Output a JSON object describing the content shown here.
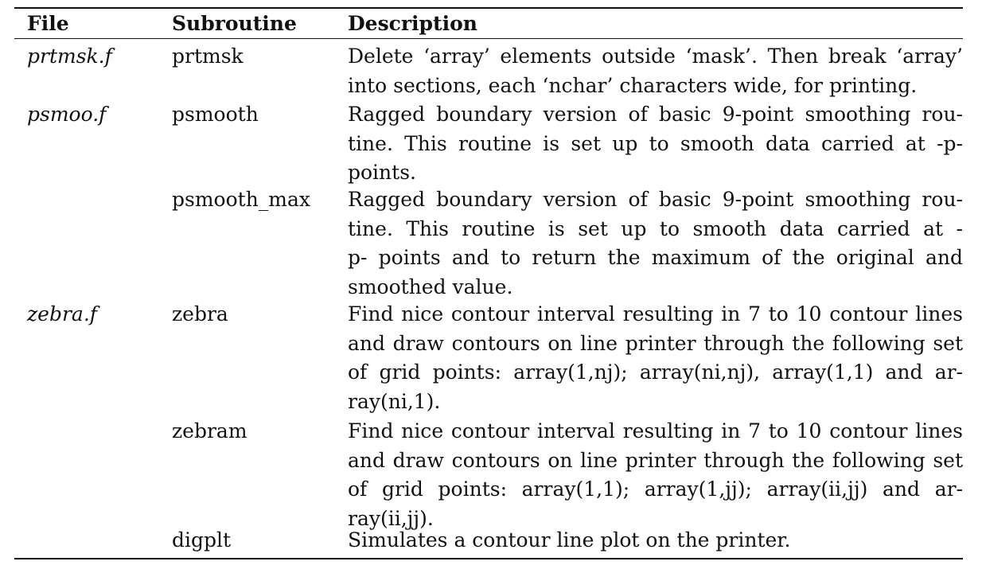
{
  "table": {
    "headers": {
      "file": "File",
      "subroutine": "Subroutine",
      "description": "Description"
    },
    "rows": [
      {
        "file": "prtmsk.f",
        "subroutine": "prtmsk",
        "description_lines": [
          "Delete ‘array’ elements outside ‘mask’.  Then break ‘array’",
          "into sections, each ‘nchar’ characters wide, for printing."
        ]
      },
      {
        "file": "psmoo.f",
        "subroutine": "psmooth",
        "description_lines": [
          "Ragged boundary version of basic 9-point smoothing rou-",
          "tine.  This routine is set up to smooth data carried at -p-",
          "points."
        ]
      },
      {
        "file": "",
        "subroutine": "psmooth_max",
        "description_lines": [
          "Ragged boundary version of basic 9-point smoothing rou-",
          "tine.  This routine is set up to smooth data carried at -",
          "p- points and to return the maximum of the original and",
          "smoothed value."
        ]
      },
      {
        "file": "zebra.f",
        "subroutine": "zebra",
        "description_lines": [
          "Find nice contour interval resulting in 7 to 10 contour lines",
          "and draw contours on line printer through the following set",
          "of grid points:  array(1,nj); array(ni,nj), array(1,1) and ar-",
          "ray(ni,1)."
        ]
      },
      {
        "file": "",
        "subroutine": "zebram",
        "description_lines": [
          "Find nice contour interval resulting in 7 to 10 contour lines",
          "and draw contours on line printer through the following set",
          "of grid points:  array(1,1); array(1,jj); array(ii,jj) and ar-",
          "ray(ii,jj)."
        ]
      },
      {
        "file": "",
        "subroutine": "digplt",
        "description_lines": [
          "Simulates a contour line plot on the printer."
        ]
      }
    ]
  }
}
